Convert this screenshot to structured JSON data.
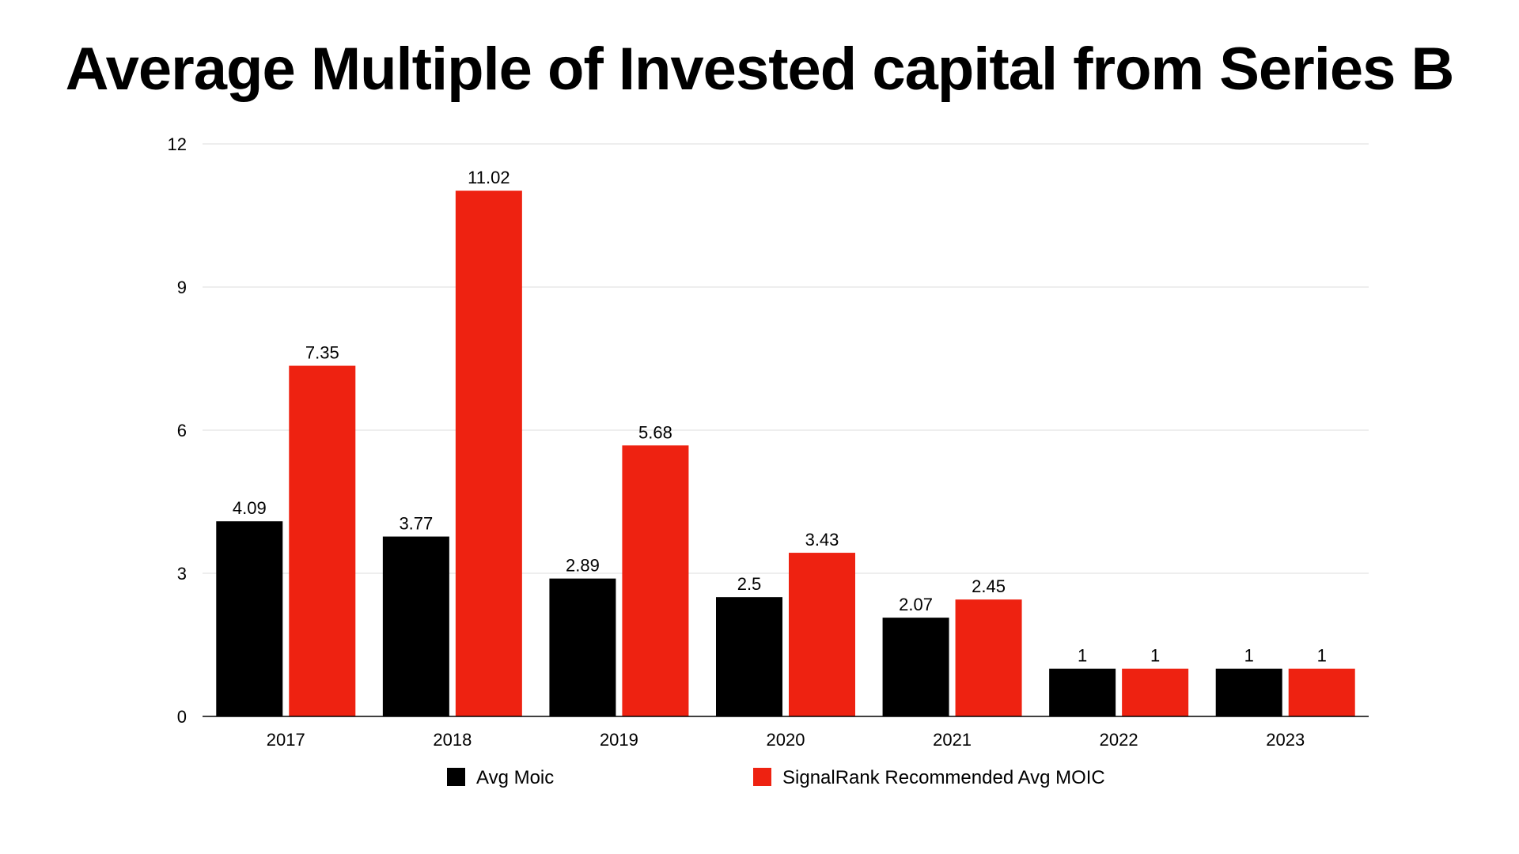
{
  "chart_data": {
    "type": "bar",
    "title": "Average Multiple of Invested capital from Series B",
    "categories": [
      "2017",
      "2018",
      "2019",
      "2020",
      "2021",
      "2022",
      "2023"
    ],
    "series": [
      {
        "name": "Avg Moic",
        "color": "#000000",
        "values": [
          4.09,
          3.77,
          2.89,
          2.5,
          2.07,
          1,
          1
        ],
        "labels": [
          "4.09",
          "3.77",
          "2.89",
          "2.5",
          "2.07",
          "1",
          "1"
        ]
      },
      {
        "name": "SignalRank Recommended Avg MOIC",
        "color": "#ee2211",
        "values": [
          7.35,
          11.02,
          5.68,
          3.43,
          2.45,
          1,
          1
        ],
        "labels": [
          "7.35",
          "11.02",
          "5.68",
          "3.43",
          "2.45",
          "1",
          "1"
        ]
      }
    ],
    "xlabel": "",
    "ylabel": "",
    "ylim": [
      0,
      12
    ],
    "yticks": [
      "0",
      "3",
      "6",
      "9",
      "12"
    ],
    "grid": true,
    "legend_position": "bottom"
  }
}
